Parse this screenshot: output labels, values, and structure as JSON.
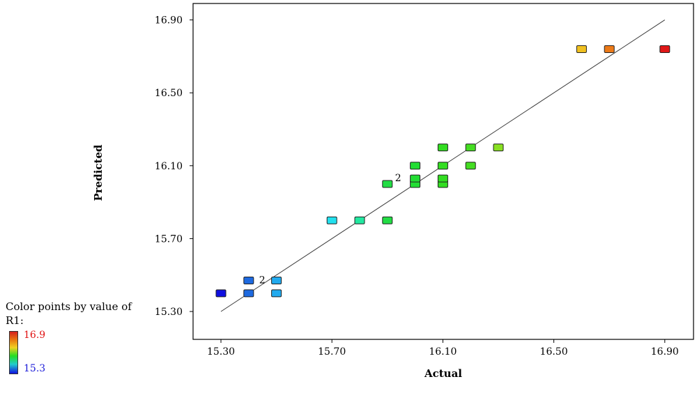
{
  "chart_data": {
    "type": "scatter",
    "xlabel": "Actual",
    "ylabel": "Predicted",
    "xlim": [
      15.2,
      17.0
    ],
    "ylim": [
      15.2,
      17.0
    ],
    "x_ticks": [
      "15.30",
      "15.70",
      "16.10",
      "16.50",
      "16.90"
    ],
    "y_ticks": [
      "15.30",
      "15.70",
      "16.10",
      "16.50",
      "16.90"
    ],
    "reference_line": {
      "from": [
        15.3,
        15.3
      ],
      "to": [
        16.9,
        16.9
      ]
    },
    "points": [
      {
        "x": 15.3,
        "y": 15.4,
        "color": "#1010e0"
      },
      {
        "x": 15.4,
        "y": 15.4,
        "color": "#1e6ae0"
      },
      {
        "x": 15.4,
        "y": 15.47,
        "color": "#1e6ae0"
      },
      {
        "x": 15.5,
        "y": 15.47,
        "color": "#22aaee"
      },
      {
        "x": 15.5,
        "y": 15.4,
        "color": "#22aaee"
      },
      {
        "x": 15.7,
        "y": 15.8,
        "color": "#22e0ee"
      },
      {
        "x": 15.8,
        "y": 15.8,
        "color": "#22e8a0"
      },
      {
        "x": 15.9,
        "y": 15.8,
        "color": "#22dd44"
      },
      {
        "x": 15.9,
        "y": 16.0,
        "color": "#22dd44"
      },
      {
        "x": 16.0,
        "y": 16.0,
        "color": "#22dd33"
      },
      {
        "x": 16.0,
        "y": 16.03,
        "color": "#22dd33"
      },
      {
        "x": 16.0,
        "y": 16.1,
        "color": "#22dd33"
      },
      {
        "x": 16.1,
        "y": 16.0,
        "color": "#33dd22"
      },
      {
        "x": 16.1,
        "y": 16.03,
        "color": "#33dd22"
      },
      {
        "x": 16.1,
        "y": 16.1,
        "color": "#33dd22"
      },
      {
        "x": 16.1,
        "y": 16.2,
        "color": "#33dd22"
      },
      {
        "x": 16.2,
        "y": 16.1,
        "color": "#44dd22"
      },
      {
        "x": 16.2,
        "y": 16.2,
        "color": "#44dd22"
      },
      {
        "x": 16.3,
        "y": 16.2,
        "color": "#88e022"
      },
      {
        "x": 16.6,
        "y": 16.74,
        "color": "#f0c020"
      },
      {
        "x": 16.7,
        "y": 16.74,
        "color": "#ec7a18"
      },
      {
        "x": 16.9,
        "y": 16.74,
        "color": "#e01818"
      }
    ],
    "annotations": [
      {
        "text": "2",
        "x": 15.47,
        "y": 15.47
      },
      {
        "text": "2",
        "x": 15.96,
        "y": 16.03
      }
    ]
  },
  "legend": {
    "title": "Color points by value of R1:",
    "max_label": "16.9",
    "min_label": "15.3"
  }
}
